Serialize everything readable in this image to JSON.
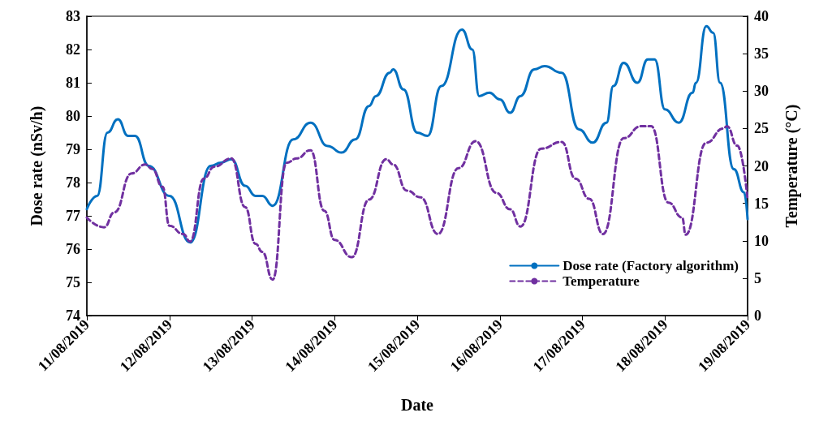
{
  "chart_data": {
    "type": "line",
    "xlabel": "Date",
    "ylabel": "Dose rate (nSv/h)",
    "y2label": "Temperature (°C)",
    "xlim": [
      "2019-08-11",
      "2019-08-19"
    ],
    "xticks": [
      {
        "value": "2019-08-11",
        "label": "11/08/2019"
      },
      {
        "value": "2019-08-12",
        "label": "12/08/2019"
      },
      {
        "value": "2019-08-13",
        "label": "13/08/2019"
      },
      {
        "value": "2019-08-14",
        "label": "14/08/2019"
      },
      {
        "value": "2019-08-15",
        "label": "15/08/2019"
      },
      {
        "value": "2019-08-16",
        "label": "16/08/2019"
      },
      {
        "value": "2019-08-17",
        "label": "17/08/2019"
      },
      {
        "value": "2019-08-18",
        "label": "18/08/2019"
      },
      {
        "value": "2019-08-19",
        "label": "19/08/2019"
      }
    ],
    "ylim": [
      74,
      83
    ],
    "yticks": [
      74,
      75,
      76,
      77,
      78,
      79,
      80,
      81,
      82,
      83
    ],
    "y2lim": [
      0,
      40
    ],
    "y2ticks": [
      0,
      5,
      10,
      15,
      20,
      25,
      30,
      35,
      40
    ],
    "grid": false,
    "legend": "bottom right",
    "marker": "none",
    "series": [
      {
        "name": "Dose rate (Factory algorithm)",
        "color": "#0070c0",
        "line_style": "solid",
        "x": [
          "2019-08-11T00:00",
          "2019-08-11T03:00",
          "2019-08-11T06:00",
          "2019-08-11T09:00",
          "2019-08-11T12:00",
          "2019-08-11T14:00",
          "2019-08-11T18:00",
          "2019-08-12T00:00",
          "2019-08-12T06:00",
          "2019-08-12T12:00",
          "2019-08-12T15:00",
          "2019-08-12T18:00",
          "2019-08-12T22:00",
          "2019-08-13T01:00",
          "2019-08-13T03:00",
          "2019-08-13T06:00",
          "2019-08-13T12:00",
          "2019-08-13T17:00",
          "2019-08-13T22:00",
          "2019-08-14T02:00",
          "2019-08-14T06:00",
          "2019-08-14T10:00",
          "2019-08-14T12:00",
          "2019-08-14T16:00",
          "2019-08-14T17:00",
          "2019-08-14T20:00",
          "2019-08-15T00:00",
          "2019-08-15T03:00",
          "2019-08-15T07:00",
          "2019-08-15T13:00",
          "2019-08-15T16:00",
          "2019-08-15T18:00",
          "2019-08-15T21:00",
          "2019-08-16T00:00",
          "2019-08-16T03:00",
          "2019-08-16T06:00",
          "2019-08-16T10:00",
          "2019-08-16T13:00",
          "2019-08-16T18:00",
          "2019-08-16T23:00",
          "2019-08-17T03:00",
          "2019-08-17T07:00",
          "2019-08-17T09:00",
          "2019-08-17T12:00",
          "2019-08-17T16:00",
          "2019-08-17T19:00",
          "2019-08-17T21:00",
          "2019-08-18T00:00",
          "2019-08-18T04:00",
          "2019-08-18T08:00",
          "2019-08-18T09:00",
          "2019-08-18T12:00",
          "2019-08-18T14:00",
          "2019-08-18T16:00",
          "2019-08-18T20:00",
          "2019-08-18T23:00",
          "2019-08-19T00:00"
        ],
        "values": [
          77.2,
          77.6,
          79.5,
          79.9,
          79.4,
          79.4,
          78.5,
          77.6,
          76.2,
          78.5,
          78.6,
          78.7,
          77.9,
          77.6,
          77.6,
          77.3,
          79.3,
          79.8,
          79.1,
          78.9,
          79.3,
          80.3,
          80.6,
          81.3,
          81.4,
          80.8,
          79.5,
          79.4,
          80.9,
          82.6,
          82.0,
          80.6,
          80.7,
          80.5,
          80.1,
          80.6,
          81.4,
          81.5,
          81.3,
          79.6,
          79.2,
          79.8,
          80.9,
          81.6,
          81.0,
          81.7,
          81.7,
          80.2,
          79.8,
          80.7,
          81.0,
          82.7,
          82.5,
          81.0,
          78.4,
          77.7,
          76.9
        ]
      },
      {
        "name": "Temperature",
        "color": "#7030a0",
        "line_style": "dashed",
        "axis": "y2",
        "x": [
          "2019-08-11T00:00",
          "2019-08-11T05:00",
          "2019-08-11T08:00",
          "2019-08-11T13:00",
          "2019-08-11T17:00",
          "2019-08-11T19:00",
          "2019-08-11T22:00",
          "2019-08-12T00:00",
          "2019-08-12T04:00",
          "2019-08-12T06:00",
          "2019-08-12T10:00",
          "2019-08-12T13:00",
          "2019-08-12T18:00",
          "2019-08-12T22:00",
          "2019-08-13T01:00",
          "2019-08-13T03:00",
          "2019-08-13T06:00",
          "2019-08-13T10:00",
          "2019-08-13T13:00",
          "2019-08-13T17:00",
          "2019-08-13T21:00",
          "2019-08-14T00:00",
          "2019-08-14T05:00",
          "2019-08-14T10:00",
          "2019-08-14T15:00",
          "2019-08-14T17:00",
          "2019-08-14T21:00",
          "2019-08-15T01:00",
          "2019-08-15T06:00",
          "2019-08-15T12:00",
          "2019-08-15T17:00",
          "2019-08-15T23:00",
          "2019-08-16T03:00",
          "2019-08-16T06:00",
          "2019-08-16T12:00",
          "2019-08-16T18:00",
          "2019-08-16T22:00",
          "2019-08-17T02:00",
          "2019-08-17T06:00",
          "2019-08-17T12:00",
          "2019-08-17T17:00",
          "2019-08-17T20:00",
          "2019-08-18T01:00",
          "2019-08-18T05:00",
          "2019-08-18T06:00",
          "2019-08-18T12:00",
          "2019-08-18T17:00",
          "2019-08-18T18:00",
          "2019-08-18T21:00",
          "2019-08-19T00:00"
        ],
        "values": [
          13.1,
          11.8,
          13.8,
          19.0,
          20.2,
          19.6,
          17.2,
          12.0,
          10.9,
          9.9,
          18.3,
          19.9,
          21.0,
          14.5,
          9.6,
          8.5,
          4.8,
          20.4,
          21.0,
          22.1,
          14.0,
          10.1,
          7.8,
          15.5,
          20.9,
          20.2,
          16.7,
          15.8,
          10.9,
          19.7,
          23.3,
          16.4,
          14.2,
          11.9,
          22.3,
          23.2,
          18.3,
          15.6,
          10.9,
          23.7,
          25.3,
          25.3,
          15.1,
          13.1,
          10.8,
          23.1,
          25.0,
          25.3,
          22.7,
          15.5
        ]
      }
    ]
  }
}
